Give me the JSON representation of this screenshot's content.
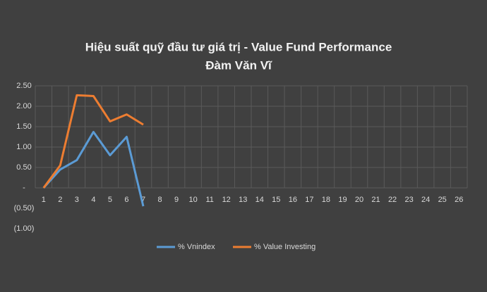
{
  "chart_data": {
    "type": "line",
    "title": "Hiệu suất quỹ đầu tư giá trị - Value Fund Performance",
    "subtitle": "Đàm Văn Vĩ",
    "categories": [
      1,
      2,
      3,
      4,
      5,
      6,
      7,
      8,
      9,
      10,
      11,
      12,
      13,
      14,
      15,
      16,
      17,
      18,
      19,
      20,
      21,
      22,
      23,
      24,
      25,
      26
    ],
    "series": [
      {
        "name": "% Vnindex",
        "color": "#5b9bd5",
        "values": [
          0,
          0.45,
          0.68,
          1.37,
          0.8,
          1.25,
          -0.45,
          null,
          null,
          null,
          null,
          null,
          null,
          null,
          null,
          null,
          null,
          null,
          null,
          null,
          null,
          null,
          null,
          null,
          null,
          null
        ]
      },
      {
        "name": "% Value Investing",
        "color": "#ed7d31",
        "values": [
          0,
          0.55,
          2.27,
          2.25,
          1.63,
          1.8,
          1.55,
          null,
          null,
          null,
          null,
          null,
          null,
          null,
          null,
          null,
          null,
          null,
          null,
          null,
          null,
          null,
          null,
          null,
          null,
          null
        ]
      }
    ],
    "ylim": [
      -1,
      2.5
    ],
    "yticks": [
      {
        "value": -1,
        "label": "(1.00)"
      },
      {
        "value": -0.5,
        "label": "(0.50)"
      },
      {
        "value": 0,
        "label": "-"
      },
      {
        "value": 0.5,
        "label": "0.50"
      },
      {
        "value": 1,
        "label": "1.00"
      },
      {
        "value": 1.5,
        "label": "1.50"
      },
      {
        "value": 2,
        "label": "2.00"
      },
      {
        "value": 2.5,
        "label": "2.50"
      }
    ],
    "grid": true,
    "legend": "bottom"
  }
}
